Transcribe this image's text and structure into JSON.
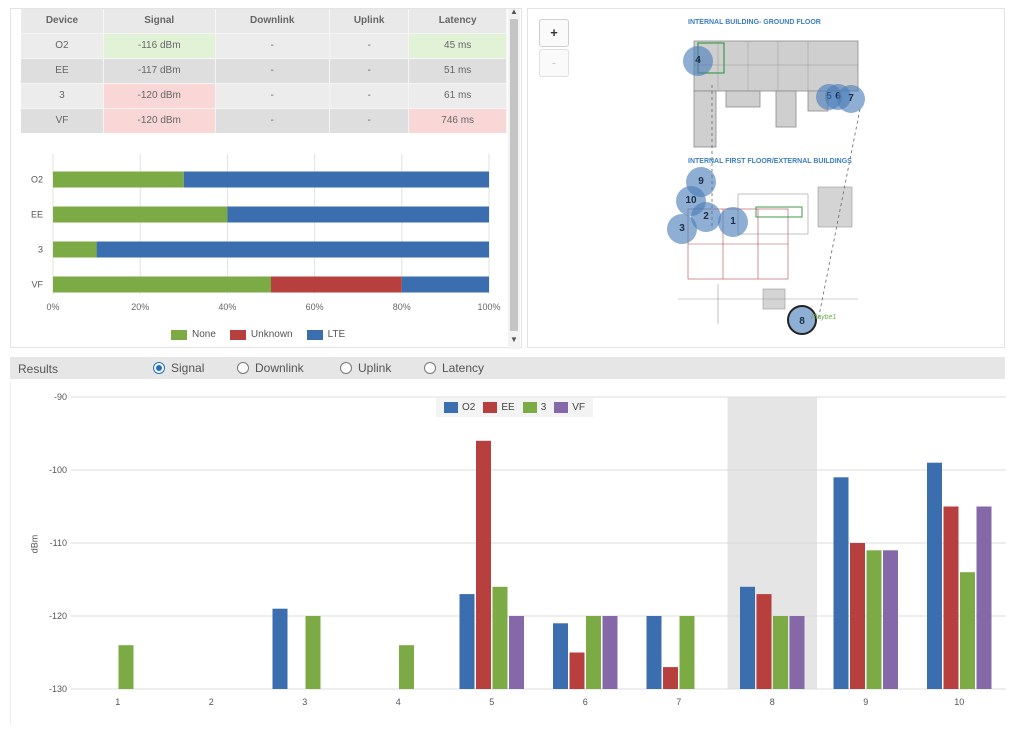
{
  "device_table": {
    "headers": [
      "Device",
      "Signal",
      "Downlink",
      "Uplink",
      "Latency"
    ],
    "rows": [
      {
        "device": "O2",
        "signal": "-116 dBm",
        "downlink": "-",
        "uplink": "-",
        "latency": "45 ms",
        "signal_status": "good",
        "latency_status": "good"
      },
      {
        "device": "EE",
        "signal": "-117 dBm",
        "downlink": "-",
        "uplink": "-",
        "latency": "51 ms",
        "signal_status": "neutral",
        "latency_status": "neutral"
      },
      {
        "device": "3",
        "signal": "-120 dBm",
        "downlink": "-",
        "uplink": "-",
        "latency": "61 ms",
        "signal_status": "bad",
        "latency_status": "neutral"
      },
      {
        "device": "VF",
        "signal": "-120 dBm",
        "downlink": "-",
        "uplink": "-",
        "latency": "746 ms",
        "signal_status": "bad",
        "latency_status": "bad"
      }
    ]
  },
  "tech_chart": {
    "categories": [
      "O2",
      "EE",
      "3",
      "VF"
    ],
    "x_ticks": [
      "0%",
      "20%",
      "40%",
      "60%",
      "80%",
      "100%"
    ],
    "series": [
      {
        "name": "None",
        "color": "#7cab46",
        "values": [
          30,
          40,
          10,
          50
        ]
      },
      {
        "name": "Unknown",
        "color": "#b7403e",
        "values": [
          0,
          0,
          0,
          30
        ]
      },
      {
        "name": "LTE",
        "color": "#3b6eaf",
        "values": [
          70,
          60,
          90,
          20
        ]
      }
    ]
  },
  "map": {
    "zoom_in": "+",
    "zoom_out": "-",
    "ground_title": "INTERNAL BUILDING- GROUND FLOOR",
    "first_title": "INTERNAL FIRST FLOOR/EXTERNAL BUILDINGS",
    "points": [
      "1",
      "2",
      "3",
      "4",
      "5",
      "6",
      "7",
      "8",
      "9",
      "10"
    ],
    "selected_point": "8",
    "link_text": "Playbe1"
  },
  "results": {
    "label": "Results",
    "options": [
      "Signal",
      "Downlink",
      "Uplink",
      "Latency"
    ],
    "selected": "Signal"
  },
  "chart_data": {
    "type": "bar",
    "ylabel": "dBm",
    "xlabel": "",
    "ylim": [
      -130,
      -90
    ],
    "y_ticks": [
      -90,
      -100,
      -110,
      -120,
      -130
    ],
    "categories": [
      "1",
      "2",
      "3",
      "4",
      "5",
      "6",
      "7",
      "8",
      "9",
      "10"
    ],
    "highlighted_category": "8",
    "series": [
      {
        "name": "O2",
        "color": "#3b6eaf",
        "values": [
          null,
          null,
          -119,
          null,
          -117,
          -121,
          -120,
          -116,
          -101,
          -99
        ]
      },
      {
        "name": "EE",
        "color": "#b7403e",
        "values": [
          null,
          null,
          null,
          null,
          -96,
          -125,
          -127,
          -117,
          -110,
          -105
        ]
      },
      {
        "name": "3",
        "color": "#7cab46",
        "values": [
          -124,
          null,
          -120,
          -124,
          -116,
          -120,
          -120,
          -120,
          -111,
          -114
        ]
      },
      {
        "name": "VF",
        "color": "#8468a8",
        "values": [
          null,
          null,
          null,
          null,
          -120,
          -120,
          null,
          -120,
          -111,
          -105
        ]
      }
    ]
  }
}
